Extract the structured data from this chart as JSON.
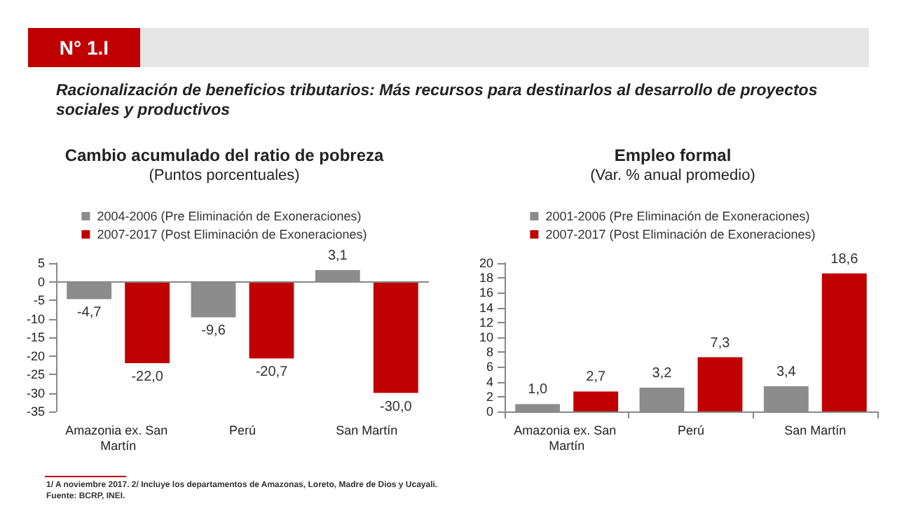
{
  "chart_data": [
    {
      "type": "bar",
      "title": "Cambio acumulado del ratio de pobreza",
      "subtitle": "(Puntos porcentuales)",
      "annotations": [
        "N° 1.I",
        "Racionalización de beneficios tributarios: Más recursos para destinarlos al desarrollo de proyectos sociales y productivos",
        "1/ A noviembre 2017. 2/ Incluye los departamentos de Amazonas, Loreto, Madre de Dios y Ucayali.",
        "Fuente: BCRP, INEI."
      ],
      "categories": [
        "Amazonia ex. San Martín",
        "Perú",
        "San Martín"
      ],
      "series": [
        {
          "name": "2004-2006 (Pre Eliminación de Exoneraciones)",
          "color": "#8c8c8c",
          "values": [
            -4.7,
            -9.6,
            3.1
          ],
          "value_labels": [
            "-4,7",
            "-9,6",
            "3,1"
          ]
        },
        {
          "name": "2007-2017 (Post Eliminación de Exoneraciones)",
          "color": "#c00000",
          "values": [
            -22.0,
            -20.7,
            -30.0
          ],
          "value_labels": [
            "-22,0",
            "-20,7",
            "-30,0"
          ]
        }
      ],
      "ylim": [
        -35,
        5
      ],
      "yticks": [
        -35,
        -30,
        -25,
        -20,
        -15,
        -10,
        -5,
        0,
        5
      ],
      "grid": false,
      "legend": "top",
      "ref_lines": [
        {
          "axis": "y",
          "value": 0,
          "color": "#888888"
        }
      ]
    },
    {
      "type": "bar",
      "title": "Empleo formal",
      "subtitle": "(Var. % anual promedio)",
      "categories": [
        "Amazonia ex. San Martín",
        "Perú",
        "San Martín"
      ],
      "series": [
        {
          "name": "2001-2006 (Pre Eliminación de Exoneraciones)",
          "color": "#8c8c8c",
          "values": [
            1.0,
            3.2,
            3.4
          ],
          "value_labels": [
            "1,0",
            "3,2",
            "3,4"
          ]
        },
        {
          "name": "2007-2017 (Post Eliminación de Exoneraciones)",
          "color": "#c00000",
          "values": [
            2.7,
            7.3,
            18.6
          ],
          "value_labels": [
            "2,7",
            "7,3",
            "18,6"
          ]
        }
      ],
      "ylim": [
        0,
        20
      ],
      "yticks": [
        0,
        2,
        4,
        6,
        8,
        10,
        12,
        14,
        16,
        18,
        20
      ],
      "grid": false,
      "legend": "top"
    }
  ]
}
